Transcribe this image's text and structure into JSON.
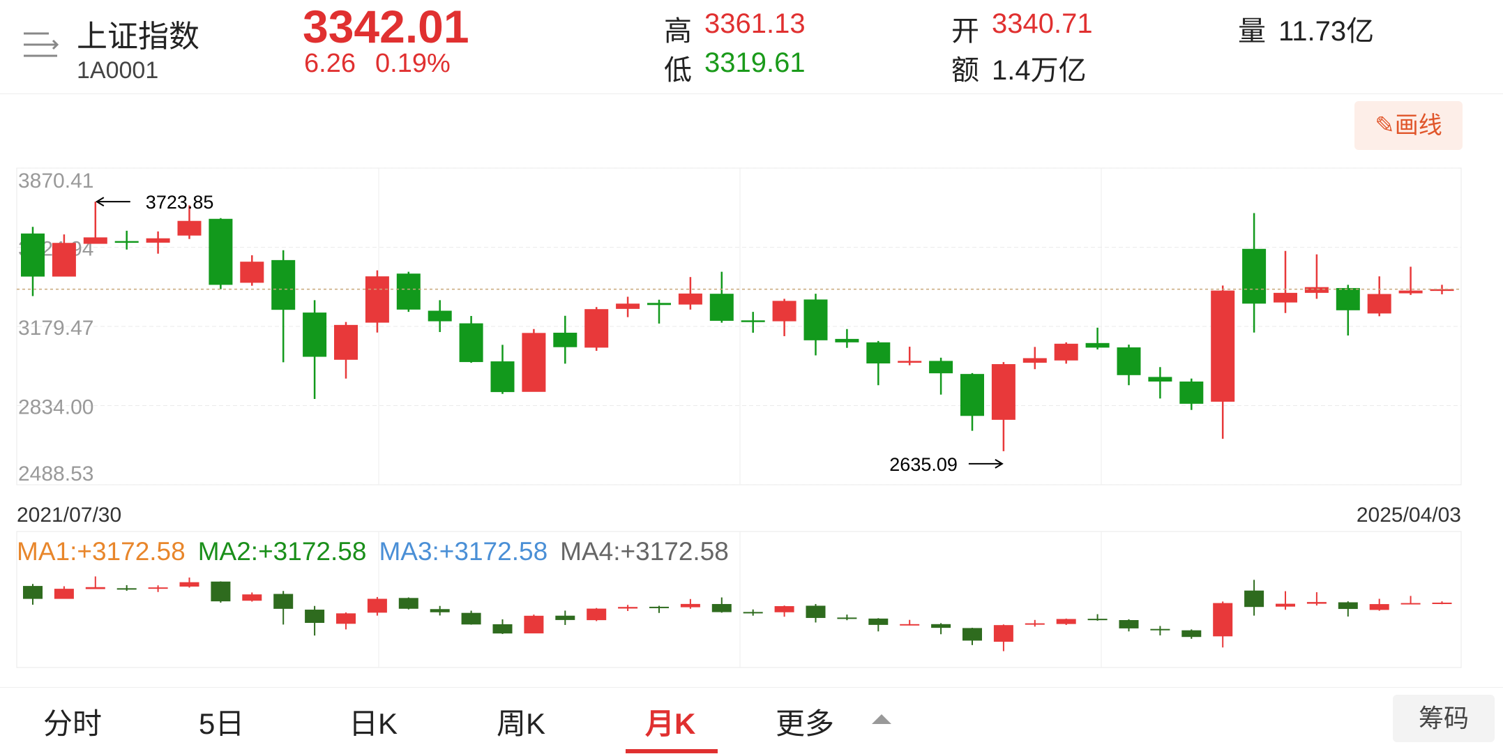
{
  "header": {
    "name": "上证指数",
    "code": "1A0001",
    "price": "3342.01",
    "change": "6.26",
    "change_pct": "0.19%",
    "high_label": "高",
    "high": "3361.13",
    "low_label": "低",
    "low": "3319.61",
    "open_label": "开",
    "open": "3340.71",
    "amount_label": "额",
    "amount": "1.4万亿",
    "volume_label": "量",
    "volume": "11.73亿"
  },
  "draw_button": "画线",
  "chart_data": {
    "type": "candlestick",
    "x_labels": [
      "2021/07/30",
      "2025/04/03"
    ],
    "open": [
      3585,
      3397,
      3540,
      3552,
      3545,
      3576,
      3649,
      3370,
      3469,
      3240,
      3034,
      3196,
      3410,
      3248,
      3193,
      3027,
      2894,
      3152,
      3087,
      3256,
      3282,
      3275,
      3322,
      3206,
      3202,
      3297,
      3125,
      3110,
      3021,
      3029,
      2972,
      2772,
      3021,
      3031,
      3107,
      3088,
      2959,
      2939,
      2851,
      3518,
      3284,
      3326,
      3347,
      3236,
      3324,
      3340.71
    ],
    "high": [
      3614,
      3581,
      3723.85,
      3597,
      3594,
      3708,
      3652,
      3490,
      3512,
      3294,
      3199,
      3424,
      3418,
      3294,
      3225,
      3099,
      3168,
      3226,
      3264,
      3309,
      3296,
      3395,
      3418,
      3243,
      3300,
      3322,
      3168,
      3116,
      3091,
      3043,
      2976,
      3024,
      3090,
      3110,
      3174,
      3100,
      3002,
      2952,
      3358,
      3674,
      3509,
      3494,
      3361,
      3398,
      3440,
      3361.13
    ],
    "low": [
      3312,
      3399,
      3541,
      3515,
      3497,
      3561,
      3342,
      3357,
      3023,
      2863,
      2952,
      3153,
      3243,
      3155,
      3021,
      2885,
      2896,
      3017,
      3073,
      3220,
      3192,
      3253,
      3196,
      3152,
      3137,
      3053,
      3086,
      2923,
      3010,
      2882,
      2724,
      2635.09,
      2993,
      3017,
      3079,
      2923,
      2865,
      2815,
      2689,
      3153,
      3238,
      3300,
      3140,
      3224,
      3317,
      3319.61
    ],
    "close": [
      3397,
      3544,
      3568,
      3547,
      3564,
      3640,
      3361,
      3462,
      3252,
      3047,
      3186,
      3398,
      3253,
      3202,
      3024,
      2893,
      3151,
      3089,
      3255,
      3279,
      3273,
      3323,
      3204,
      3202,
      3291,
      3119,
      3110,
      3018,
      3029,
      2975,
      2789,
      3015,
      3041,
      3104,
      3087,
      2967,
      2939,
      2842,
      3336,
      3279,
      3326,
      3351,
      3250,
      3321,
      3336,
      3342.01
    ],
    "up_color": "#e8393a",
    "down_color": "#12991c",
    "ylim": [
      2488.53,
      3870.41
    ],
    "yticks": [
      3870.41,
      3524.94,
      3179.47,
      {
        "value": 2834,
        "label": "2834.00"
      },
      2488.53
    ],
    "max_label": 3723.85,
    "min_label": 2635.09,
    "ma_labels": [
      {
        "text": "MA1:+3172.58",
        "color": "#e8862b"
      },
      {
        "text": "MA2:+3172.58",
        "color": "#1a8f1a"
      },
      {
        "text": "MA3:+3172.58",
        "color": "#4a8fd6"
      },
      {
        "text": "MA4:+3172.58",
        "color": "#666666"
      }
    ]
  },
  "tabs": [
    "分时",
    "5日",
    "日K",
    "周K",
    "月K",
    "更多"
  ],
  "chips_button": "筹码"
}
